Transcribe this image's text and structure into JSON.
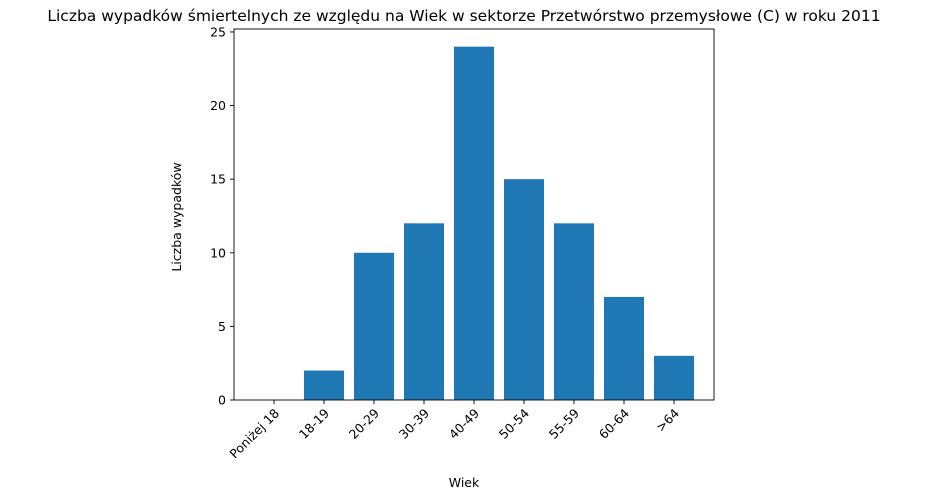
{
  "chart_data": {
    "type": "bar",
    "title": "Liczba wypadków śmiertelnych ze względu na Wiek w sektorze Przetwórstwo przemysłowe (C)   w roku 2011",
    "xlabel": "Wiek",
    "ylabel": "Liczba wypadków",
    "categories": [
      "Poniżej 18",
      "18-19",
      "20-29",
      "30-39",
      "40-49",
      "50-54",
      "55-59",
      "60-64",
      ">64"
    ],
    "values": [
      0,
      2,
      10,
      12,
      24,
      15,
      12,
      7,
      3
    ],
    "ylim": [
      0,
      25.2
    ],
    "yticks": [
      0,
      5,
      10,
      15,
      20,
      25
    ],
    "bar_color": "#1f77b4",
    "grid": false,
    "legend": "none"
  }
}
